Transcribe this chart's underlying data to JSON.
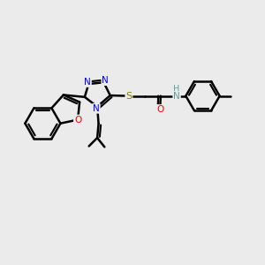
{
  "bg_color": "#ebebeb",
  "bond_color": "#000000",
  "bond_width": 1.8,
  "atom_colors": {
    "N": "#0000ff",
    "O": "#ff0000",
    "S": "#808000",
    "H": "#5f9ea0"
  },
  "figsize": [
    3.0,
    3.0
  ],
  "dpi": 100,
  "xlim": [
    0,
    10
  ],
  "ylim": [
    0,
    10
  ]
}
